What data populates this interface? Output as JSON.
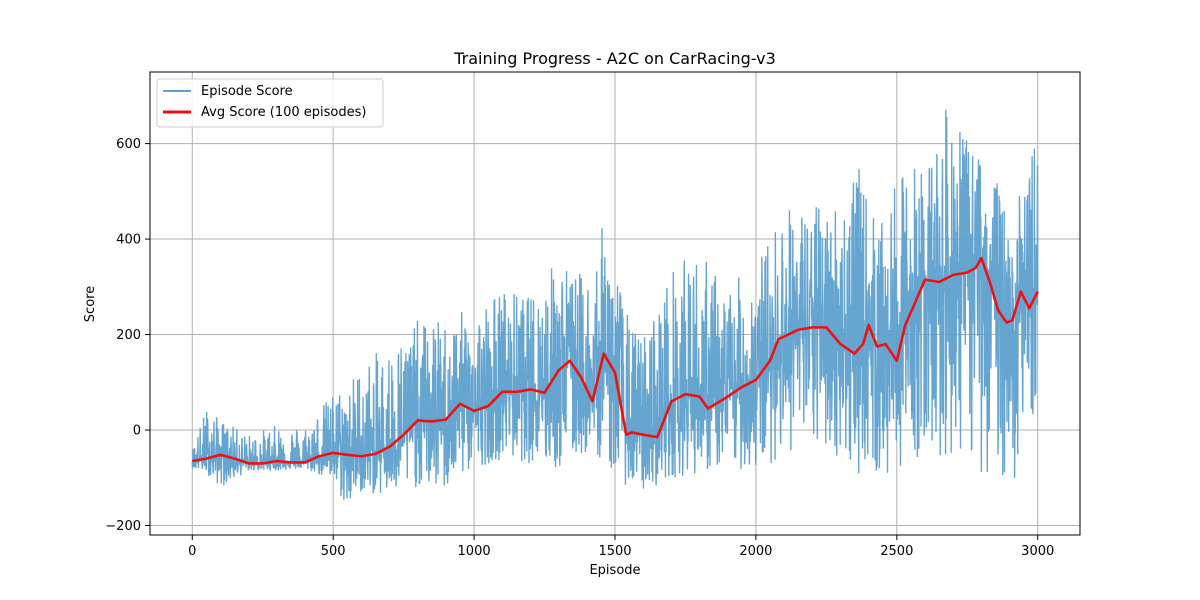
{
  "chart_data": {
    "type": "line",
    "title": "Training Progress - A2C on CarRacing-v3",
    "xlabel": "Episode",
    "ylabel": "Score",
    "xlim": [
      -150,
      3150
    ],
    "ylim": [
      -220,
      750
    ],
    "xticks": [
      0,
      500,
      1000,
      1500,
      2000,
      2500,
      3000
    ],
    "yticks": [
      -200,
      0,
      200,
      400,
      600
    ],
    "grid": true,
    "legend_position": "top-left",
    "series": [
      {
        "name": "Episode Score",
        "color": "#5fa0cf",
        "kind": "raw-noisy",
        "note_envelope": "per-episode scores oscillate rapidly around the moving average; envelope points below",
        "envelope": {
          "x": [
            0,
            50,
            100,
            200,
            300,
            400,
            500,
            550,
            600,
            700,
            800,
            900,
            1000,
            1100,
            1200,
            1300,
            1350,
            1400,
            1450,
            1500,
            1550,
            1600,
            1700,
            1800,
            1900,
            2000,
            2100,
            2200,
            2300,
            2350,
            2400,
            2450,
            2500,
            2550,
            2600,
            2700,
            2750,
            2800,
            2850,
            2900,
            2950,
            3000
          ],
          "low": [
            -80,
            -90,
            -120,
            -85,
            -85,
            -80,
            -110,
            -170,
            -130,
            -140,
            -120,
            -130,
            -80,
            -60,
            -70,
            -90,
            -70,
            -50,
            -60,
            -100,
            -120,
            -130,
            -100,
            -90,
            -80,
            -90,
            -50,
            -40,
            -60,
            -100,
            -70,
            -130,
            -80,
            -60,
            -60,
            -60,
            -50,
            -100,
            -80,
            -120,
            -90,
            80
          ],
          "high": [
            -40,
            50,
            20,
            -10,
            10,
            10,
            80,
            100,
            140,
            180,
            230,
            230,
            260,
            300,
            280,
            370,
            330,
            330,
            430,
            360,
            230,
            200,
            340,
            380,
            300,
            350,
            470,
            470,
            490,
            580,
            480,
            430,
            520,
            560,
            560,
            710,
            600,
            580,
            540,
            430,
            520,
            660
          ]
        }
      },
      {
        "name": "Avg Score (100 episodes)",
        "color": "#ee1111",
        "x": [
          0,
          50,
          100,
          150,
          200,
          250,
          300,
          350,
          400,
          450,
          500,
          550,
          600,
          650,
          700,
          750,
          800,
          850,
          900,
          950,
          1000,
          1050,
          1100,
          1150,
          1200,
          1250,
          1300,
          1340,
          1380,
          1420,
          1460,
          1500,
          1540,
          1560,
          1600,
          1650,
          1700,
          1750,
          1800,
          1830,
          1900,
          1950,
          2000,
          2050,
          2080,
          2150,
          2200,
          2250,
          2300,
          2350,
          2380,
          2400,
          2430,
          2460,
          2500,
          2530,
          2560,
          2600,
          2650,
          2700,
          2750,
          2780,
          2800,
          2830,
          2860,
          2890,
          2910,
          2940,
          2970,
          3000
        ],
        "values": [
          -65,
          -60,
          -52,
          -60,
          -70,
          -70,
          -65,
          -68,
          -68,
          -55,
          -48,
          -52,
          -55,
          -50,
          -35,
          -10,
          20,
          18,
          22,
          55,
          40,
          50,
          80,
          80,
          85,
          78,
          125,
          145,
          110,
          60,
          160,
          120,
          -10,
          -5,
          -10,
          -15,
          60,
          75,
          70,
          45,
          70,
          90,
          105,
          145,
          190,
          210,
          215,
          215,
          180,
          160,
          180,
          220,
          175,
          180,
          145,
          220,
          260,
          315,
          310,
          325,
          330,
          340,
          360,
          310,
          250,
          225,
          230,
          290,
          255,
          290
        ]
      }
    ]
  }
}
